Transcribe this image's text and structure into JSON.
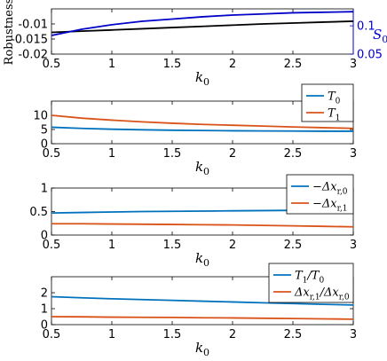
{
  "colors": {
    "black": "#000000",
    "blue_primary": "#0000c8",
    "matlab_blue": "#0072bd",
    "matlab_orange": "#d95319"
  },
  "chart_data": [
    {
      "type": "line",
      "xlabel": "k_0",
      "ylabel": "Robustness",
      "xlim": [
        0.5,
        3
      ],
      "ylim": [
        -0.02,
        -0.005
      ],
      "xticks": [
        0.5,
        1,
        1.5,
        2,
        2.5,
        3
      ],
      "xtick_labels": [
        "0.5",
        "1",
        "1.5",
        "2",
        "2.5",
        "3"
      ],
      "yticks": [
        -0.02,
        -0.015,
        -0.01
      ],
      "ytick_labels": [
        "-0.02",
        "-0.015",
        "-0.01"
      ],
      "right_axis": {
        "label": "S_0",
        "ylim": [
          0.05,
          0.13
        ],
        "yticks": [
          0.05,
          0.1
        ],
        "ytick_labels": [
          "0.05",
          "0.1"
        ],
        "color": "#0000c8"
      },
      "series": [
        {
          "axis": "left",
          "color": "#000000",
          "x": [
            0.5,
            0.75,
            1,
            1.25,
            1.5,
            1.75,
            2,
            2.25,
            2.5,
            2.75,
            3
          ],
          "y": [
            -0.0128,
            -0.0124,
            -0.012,
            -0.0116,
            -0.0112,
            -0.0108,
            -0.0104,
            -0.01,
            -0.0097,
            -0.0094,
            -0.0091
          ]
        },
        {
          "axis": "right",
          "color": "#0000c8",
          "x": [
            0.5,
            0.75,
            1,
            1.25,
            1.5,
            1.75,
            2,
            2.25,
            2.5,
            2.75,
            3
          ],
          "y": [
            0.083,
            0.094,
            0.102,
            0.108,
            0.112,
            0.116,
            0.119,
            0.121,
            0.123,
            0.124,
            0.125
          ]
        }
      ],
      "grid": false
    },
    {
      "type": "line",
      "xlabel": "k_0",
      "xlim": [
        0.5,
        3
      ],
      "ylim": [
        0,
        15
      ],
      "xticks": [
        0.5,
        1,
        1.5,
        2,
        2.5,
        3
      ],
      "xtick_labels": [
        "0.5",
        "1",
        "1.5",
        "2",
        "2.5",
        "3"
      ],
      "yticks": [
        0,
        5,
        10
      ],
      "ytick_labels": [
        "0",
        "5",
        "10"
      ],
      "legend_position": "top-right",
      "legend": [
        "T_0",
        "T_1"
      ],
      "series": [
        {
          "name": "T_0",
          "color": "#0072bd",
          "x": [
            0.5,
            0.75,
            1,
            1.25,
            1.5,
            1.75,
            2,
            2.25,
            2.5,
            2.75,
            3
          ],
          "y": [
            5.8,
            5.4,
            5.1,
            4.9,
            4.75,
            4.65,
            4.55,
            4.5,
            4.45,
            4.4,
            4.4
          ]
        },
        {
          "name": "T_1",
          "color": "#d95319",
          "x": [
            0.5,
            0.75,
            1,
            1.25,
            1.5,
            1.75,
            2,
            2.25,
            2.5,
            2.75,
            3
          ],
          "y": [
            10.0,
            9.0,
            8.3,
            7.7,
            7.2,
            6.8,
            6.5,
            6.2,
            5.9,
            5.65,
            5.4
          ]
        }
      ],
      "grid": false
    },
    {
      "type": "line",
      "xlabel": "k_0",
      "xlim": [
        0.5,
        3
      ],
      "ylim": [
        0,
        1
      ],
      "xticks": [
        0.5,
        1,
        1.5,
        2,
        2.5,
        3
      ],
      "xtick_labels": [
        "0.5",
        "1",
        "1.5",
        "2",
        "2.5",
        "3"
      ],
      "yticks": [
        0,
        0.5,
        1
      ],
      "ytick_labels": [
        "0",
        "0.5",
        "1"
      ],
      "legend_position": "top-right",
      "legend": [
        "−Δx_{r,0}",
        "−Δx_{r,1}"
      ],
      "series": [
        {
          "name": "−Δx_{r,0}",
          "color": "#0072bd",
          "x": [
            0.5,
            0.75,
            1,
            1.25,
            1.5,
            1.75,
            2,
            2.25,
            2.5,
            2.75,
            3
          ],
          "y": [
            0.47,
            0.48,
            0.49,
            0.5,
            0.505,
            0.51,
            0.515,
            0.52,
            0.525,
            0.53,
            0.53
          ]
        },
        {
          "name": "−Δx_{r,1}",
          "color": "#d95319",
          "x": [
            0.5,
            0.75,
            1,
            1.25,
            1.5,
            1.75,
            2,
            2.25,
            2.5,
            2.75,
            3
          ],
          "y": [
            0.24,
            0.24,
            0.235,
            0.23,
            0.225,
            0.22,
            0.215,
            0.205,
            0.195,
            0.185,
            0.175
          ]
        }
      ],
      "grid": false
    },
    {
      "type": "line",
      "xlabel": "k_0",
      "xlim": [
        0.5,
        3
      ],
      "ylim": [
        0,
        3
      ],
      "xticks": [
        0.5,
        1,
        1.5,
        2,
        2.5,
        3
      ],
      "xtick_labels": [
        "0.5",
        "1",
        "1.5",
        "2",
        "2.5",
        "3"
      ],
      "yticks": [
        0,
        1,
        2
      ],
      "ytick_labels": [
        "0",
        "1",
        "2"
      ],
      "legend_position": "top-right",
      "legend": [
        "T_1/T_0",
        "Δx_{r,1}/Δx_{r,0}"
      ],
      "series": [
        {
          "name": "T_1/T_0",
          "color": "#0072bd",
          "x": [
            0.5,
            0.75,
            1,
            1.25,
            1.5,
            1.75,
            2,
            2.25,
            2.5,
            2.75,
            3
          ],
          "y": [
            1.75,
            1.68,
            1.62,
            1.57,
            1.52,
            1.47,
            1.42,
            1.37,
            1.32,
            1.27,
            1.23
          ]
        },
        {
          "name": "Δx_{r,1}/Δx_{r,0}",
          "color": "#d95319",
          "x": [
            0.5,
            0.75,
            1,
            1.25,
            1.5,
            1.75,
            2,
            2.25,
            2.5,
            2.75,
            3
          ],
          "y": [
            0.5,
            0.49,
            0.47,
            0.46,
            0.45,
            0.43,
            0.42,
            0.4,
            0.38,
            0.36,
            0.34
          ]
        }
      ],
      "grid": false
    }
  ]
}
